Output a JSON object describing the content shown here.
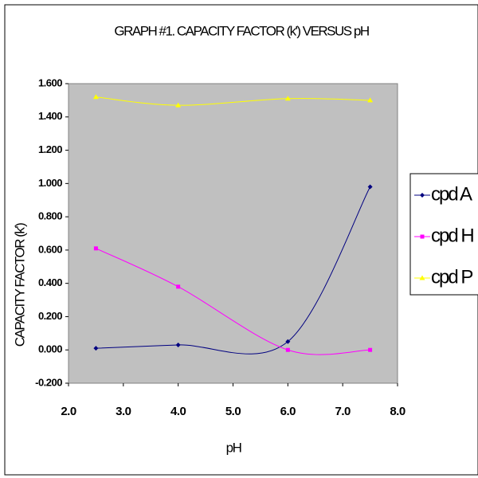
{
  "chart_data": {
    "type": "line",
    "title": "GRAPH #1. CAPACITY FACTOR (k') VERSUS pH",
    "x_label": "pH",
    "y_label": "CAPACITY FACTOR (k')",
    "x": [
      2.5,
      4.0,
      6.0,
      7.5
    ],
    "series": [
      {
        "name": "cpd A",
        "color": "#000080",
        "marker": "diamond",
        "values": [
          0.01,
          0.03,
          0.05,
          0.98
        ]
      },
      {
        "name": "cpd H",
        "color": "#ff00ff",
        "marker": "square",
        "values": [
          0.61,
          0.38,
          0.0,
          0.0
        ]
      },
      {
        "name": "cpd P",
        "color": "#ffff00",
        "marker": "triangle",
        "values": [
          1.52,
          1.47,
          1.51,
          1.5
        ]
      }
    ],
    "xlim": [
      2,
      8
    ],
    "xticks": [
      {
        "value": 2,
        "label": "2.0"
      },
      {
        "value": 3,
        "label": "3.0"
      },
      {
        "value": 4,
        "label": "4.0"
      },
      {
        "value": 5,
        "label": "5.0"
      },
      {
        "value": 6,
        "label": "6.0"
      },
      {
        "value": 7,
        "label": "7.0"
      },
      {
        "value": 8,
        "label": "8.0"
      }
    ],
    "ylim": [
      -0.2,
      1.6
    ],
    "yticks": [
      {
        "value": -0.2,
        "label": "-0.200"
      },
      {
        "value": 0,
        "label": "0.000"
      },
      {
        "value": 0.2,
        "label": "0.200"
      },
      {
        "value": 0.4,
        "label": "0.400"
      },
      {
        "value": 0.6,
        "label": "0.600"
      },
      {
        "value": 0.8,
        "label": "0.800"
      },
      {
        "value": 1.0,
        "label": "1.000"
      },
      {
        "value": 1.2,
        "label": "1.200"
      },
      {
        "value": 1.4,
        "label": "1.400"
      },
      {
        "value": 1.6,
        "label": "1.600"
      }
    ],
    "smooth": true,
    "plot_background": "#c0c0c0"
  }
}
